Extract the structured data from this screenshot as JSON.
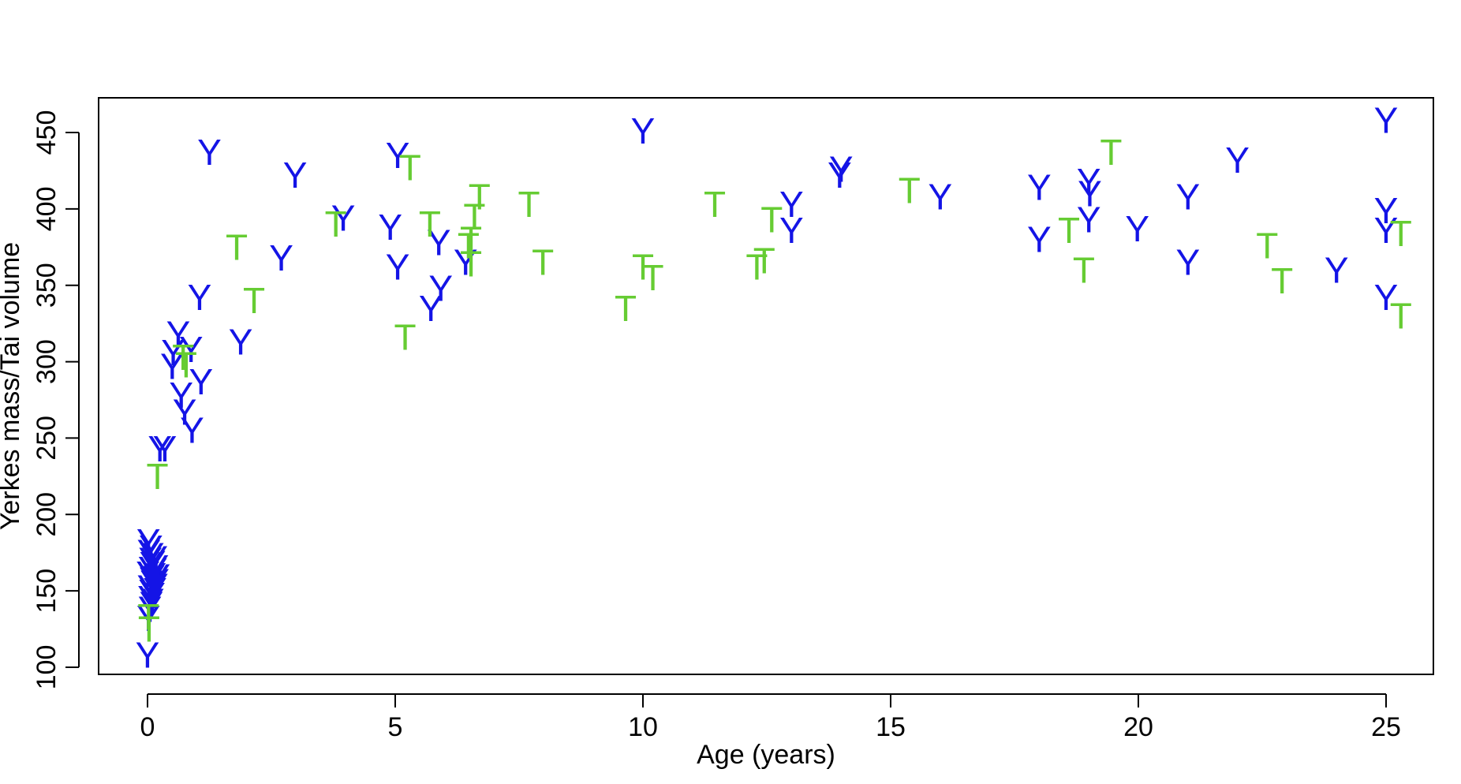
{
  "chart_data": {
    "type": "scatter",
    "title": "",
    "xlabel": "Age (years)",
    "ylabel": "Yerkes mass/Tai volume",
    "xlim": [
      -1,
      26
    ],
    "ylim": [
      100,
      460
    ],
    "xticks": [
      0,
      5,
      10,
      15,
      20,
      25
    ],
    "yticks": [
      100,
      150,
      200,
      250,
      300,
      350,
      400,
      450
    ],
    "grid": false,
    "legend": "none",
    "series": [
      {
        "name": "Yerkes",
        "marker": "Y",
        "color": "#1414E6",
        "points": [
          [
            0,
            108
          ],
          [
            0.02,
            132
          ],
          [
            0.05,
            138
          ],
          [
            0.08,
            141
          ],
          [
            0.1,
            143
          ],
          [
            0.04,
            145
          ],
          [
            0.12,
            147
          ],
          [
            0.06,
            149
          ],
          [
            0.15,
            150
          ],
          [
            0.03,
            152
          ],
          [
            0.18,
            153
          ],
          [
            0.09,
            155
          ],
          [
            0.2,
            156
          ],
          [
            0.07,
            157
          ],
          [
            0.11,
            158
          ],
          [
            0.22,
            159
          ],
          [
            0.14,
            160
          ],
          [
            0.01,
            161
          ],
          [
            0.16,
            163
          ],
          [
            0.05,
            164
          ],
          [
            0.19,
            165
          ],
          [
            0.08,
            167
          ],
          [
            0.13,
            168
          ],
          [
            0.06,
            170
          ],
          [
            0.17,
            171
          ],
          [
            0.1,
            173
          ],
          [
            0.03,
            175
          ],
          [
            0.07,
            178
          ],
          [
            0.02,
            182
          ],
          [
            0.25,
            243
          ],
          [
            0.35,
            243
          ],
          [
            0.9,
            255
          ],
          [
            0.75,
            267
          ],
          [
            0.68,
            278
          ],
          [
            1.08,
            287
          ],
          [
            0.5,
            297
          ],
          [
            0.52,
            306
          ],
          [
            0.88,
            308
          ],
          [
            0.62,
            318
          ],
          [
            1.88,
            313
          ],
          [
            1.05,
            342
          ],
          [
            1.25,
            437
          ],
          [
            2.7,
            368
          ],
          [
            2.98,
            422
          ],
          [
            3.95,
            394
          ],
          [
            4.9,
            388
          ],
          [
            5.05,
            362
          ],
          [
            5.05,
            435
          ],
          [
            5.72,
            335
          ],
          [
            5.88,
            378
          ],
          [
            5.92,
            348
          ],
          [
            6.42,
            365
          ],
          [
            10.0,
            451
          ],
          [
            13.0,
            386
          ],
          [
            13.0,
            403
          ],
          [
            13.97,
            422
          ],
          [
            14.0,
            426
          ],
          [
            16.0,
            408
          ],
          [
            18.0,
            380
          ],
          [
            18.0,
            414
          ],
          [
            19.0,
            393
          ],
          [
            19.02,
            410
          ],
          [
            19.0,
            418
          ],
          [
            19.98,
            387
          ],
          [
            21.0,
            365
          ],
          [
            21.0,
            408
          ],
          [
            22.0,
            432
          ],
          [
            24.0,
            360
          ],
          [
            25.0,
            342
          ],
          [
            25.0,
            386
          ],
          [
            25.0,
            399
          ],
          [
            25.0,
            458
          ]
        ]
      },
      {
        "name": "Tai",
        "marker": "T",
        "color": "#66CC33",
        "points": [
          [
            0.03,
            125
          ],
          [
            0.02,
            133
          ],
          [
            0.2,
            225
          ],
          [
            0.78,
            298
          ],
          [
            0.72,
            303
          ],
          [
            1.8,
            375
          ],
          [
            2.15,
            340
          ],
          [
            3.8,
            390
          ],
          [
            5.2,
            316
          ],
          [
            5.3,
            427
          ],
          [
            5.7,
            390
          ],
          [
            6.48,
            376
          ],
          [
            6.53,
            364
          ],
          [
            6.53,
            380
          ],
          [
            6.6,
            395
          ],
          [
            6.7,
            408
          ],
          [
            7.7,
            403
          ],
          [
            7.98,
            365
          ],
          [
            9.65,
            335
          ],
          [
            10.0,
            362
          ],
          [
            10.2,
            355
          ],
          [
            11.45,
            403
          ],
          [
            12.3,
            362
          ],
          [
            12.45,
            366
          ],
          [
            12.6,
            393
          ],
          [
            15.38,
            412
          ],
          [
            18.6,
            386
          ],
          [
            18.9,
            360
          ],
          [
            19.45,
            437
          ],
          [
            22.6,
            376
          ],
          [
            22.9,
            353
          ],
          [
            25.3,
            384
          ],
          [
            25.3,
            330
          ]
        ]
      }
    ]
  }
}
